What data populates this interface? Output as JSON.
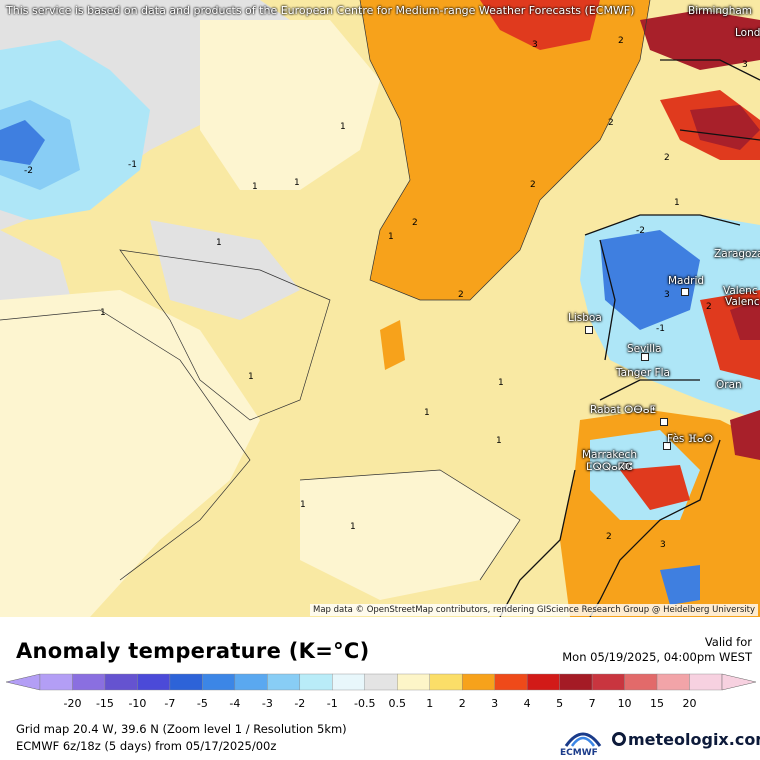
{
  "map": {
    "notice": "This service is based on data and products of the European Centre for Medium-range Weather Forecasts (ECMWF)",
    "attribution": "Map data © OpenStreetMap contributors, rendering GIScience Research Group @ Heidelberg University",
    "cities": [
      {
        "name": "Birmingham"
      },
      {
        "name": "Lond"
      },
      {
        "name": "Zaragoza"
      },
      {
        "name": "Madrid"
      },
      {
        "name": "Valenc"
      },
      {
        "name": "Valenc"
      },
      {
        "name": "Lisboa"
      },
      {
        "name": "Sevilla"
      },
      {
        "name": "Tanger Fla"
      },
      {
        "name": "Oran"
      },
      {
        "name": "Rabat ⵔⴱⴰⵟ"
      },
      {
        "name": "Fès ⴼⴰⵙ"
      },
      {
        "name": "Marrakech"
      },
      {
        "name": "ⵎⵕⵕⴰⴽⵛ"
      }
    ],
    "contour_labels": [
      "-2",
      "-1",
      "1",
      "1",
      "1",
      "1",
      "1",
      "1",
      "1",
      "1",
      "1",
      "1",
      "1",
      "1",
      "2",
      "2",
      "2",
      "2",
      "2",
      "2",
      "2",
      "3",
      "3",
      "3",
      "3",
      "-1",
      "-2",
      "2",
      "1"
    ],
    "colors": {
      "ocean_base": "#f9e9a3",
      "light_yellow": "#fdf5d0",
      "gray": "#e2e2e2",
      "orange": "#f7a21b",
      "red": "#e03a1e",
      "dark_red": "#a8202a",
      "blue": "#3f7fe0",
      "light_blue": "#aee6f7"
    }
  },
  "legend": {
    "title": "Anomaly temperature (K=°C)",
    "valid_label": "Valid for",
    "valid_date": "Mon 05/19/2025, 04:00pm WEST",
    "ticks": [
      "-20",
      "-15",
      "-10",
      "-7",
      "-5",
      "-4",
      "-3",
      "-2",
      "-1",
      "-0.5",
      "0.5",
      "1",
      "2",
      "3",
      "4",
      "5",
      "7",
      "10",
      "15",
      "20"
    ],
    "colors": [
      "#b39ef5",
      "#8a6fe0",
      "#6553d0",
      "#4b4ad8",
      "#2d63d8",
      "#3c86e6",
      "#5aa8f0",
      "#88cdf5",
      "#b9ecf8",
      "#e8f7fb",
      "#e4e4e4",
      "#fdf5c8",
      "#fbde68",
      "#f7a21b",
      "#ef4a19",
      "#d21a18",
      "#a41b25",
      "#c9353f",
      "#e26a6a",
      "#f2a4a8",
      "#f7d1e0"
    ]
  },
  "footer": {
    "grid_info": "Grid map 20.4 W, 39.6 N (Zoom level 1 / Resolution 5km)",
    "model_info": "ECMWF 6z/18z (5 days) from 05/17/2025/00z",
    "ecmwf_logo_text": "ECMWF",
    "brand": "meteologix.com"
  }
}
